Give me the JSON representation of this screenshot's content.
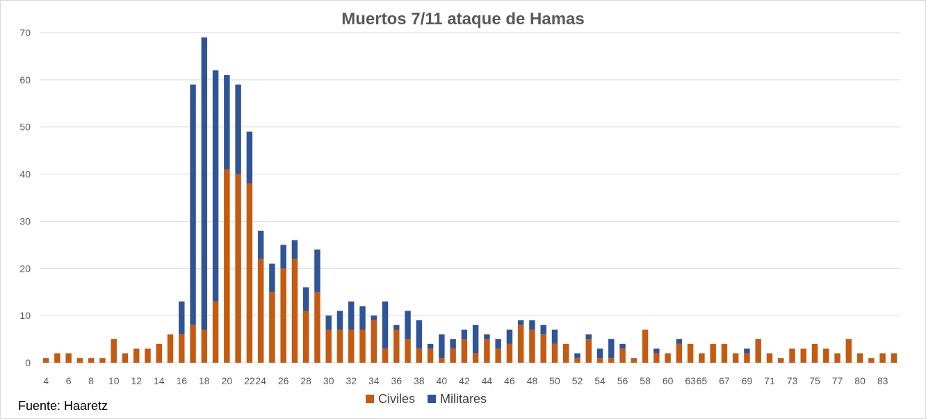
{
  "source_note": "Fuente: Haaretz",
  "colors": {
    "civiles": "#c55a11",
    "militares": "#2f5597",
    "gridline": "#d9d9d9",
    "text": "#595959"
  },
  "chart_data": {
    "type": "bar",
    "stacked": true,
    "title": "Muertos 7/11 ataque de Hamas",
    "xlabel": "",
    "ylabel": "",
    "ylim": [
      0,
      70
    ],
    "yticks": [
      0,
      10,
      20,
      30,
      40,
      50,
      60,
      70
    ],
    "grid": true,
    "legend_position": "bottom",
    "x_tick_labels": [
      "4",
      "6",
      "8",
      "10",
      "12",
      "14",
      "16",
      "18",
      "20",
      "22",
      "24",
      "26",
      "28",
      "30",
      "32",
      "34",
      "36",
      "38",
      "40",
      "42",
      "44",
      "46",
      "48",
      "50",
      "52",
      "54",
      "56",
      "58",
      "60",
      "63",
      "65",
      "67",
      "69",
      "71",
      "73",
      "75",
      "77",
      "80",
      "83"
    ],
    "series": [
      {
        "name": "Civiles",
        "values": [
          1,
          2,
          2,
          1,
          1,
          1,
          5,
          2,
          3,
          3,
          4,
          6,
          6,
          8,
          7,
          13,
          41,
          40,
          38,
          22,
          15,
          20,
          22,
          11,
          15,
          7,
          7,
          7,
          7,
          9,
          3,
          7,
          5,
          3,
          3,
          1,
          3,
          5,
          2,
          5,
          3,
          4,
          8,
          7,
          6,
          4,
          4,
          1,
          5,
          1,
          1,
          3,
          1,
          7,
          2,
          2,
          4,
          4,
          2,
          4,
          4,
          2,
          2,
          5,
          2,
          1,
          3,
          3,
          4,
          3,
          2,
          5,
          2,
          1,
          2,
          2
        ]
      },
      {
        "name": "Militares",
        "values": [
          0,
          0,
          0,
          0,
          0,
          0,
          0,
          0,
          0,
          0,
          0,
          0,
          7,
          51,
          62,
          49,
          20,
          19,
          11,
          6,
          6,
          5,
          4,
          5,
          9,
          3,
          4,
          6,
          5,
          1,
          10,
          1,
          6,
          6,
          1,
          5,
          2,
          2,
          6,
          1,
          2,
          3,
          1,
          2,
          2,
          3,
          0,
          1,
          1,
          2,
          4,
          1,
          0,
          0,
          1,
          0,
          1,
          0,
          0,
          0,
          0,
          0,
          1,
          0,
          0,
          0,
          0,
          0,
          0,
          0,
          0,
          0,
          0,
          0,
          0,
          0
        ]
      }
    ]
  }
}
